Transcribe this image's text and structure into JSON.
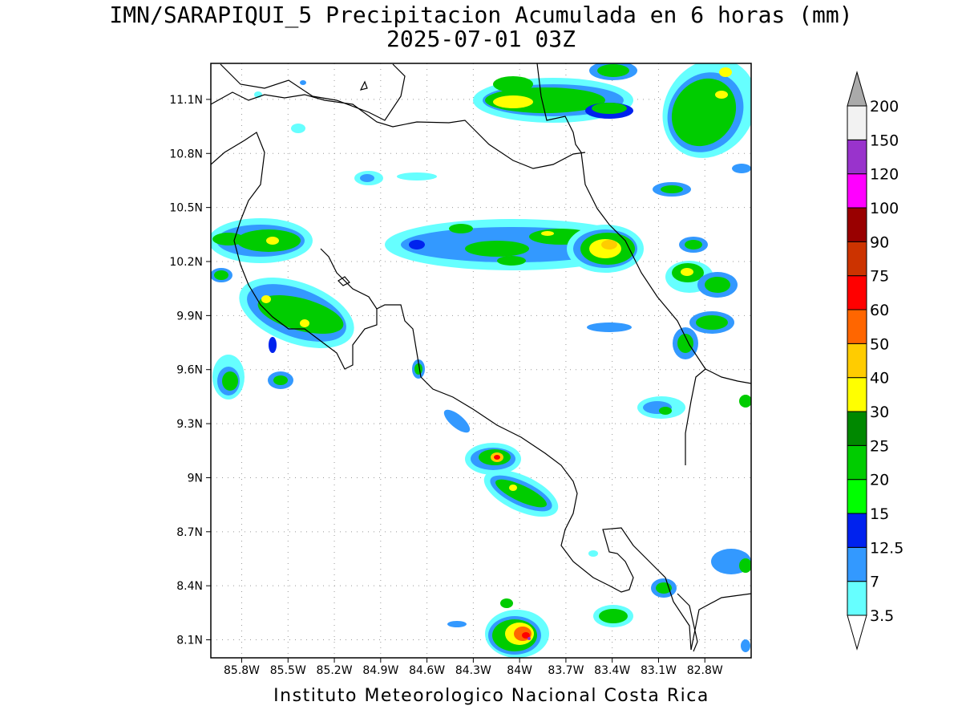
{
  "title": {
    "line1": "IMN/SARAPIQUI_5 Precipitacion Acumulada en 6 horas (mm)",
    "line2": "2025-07-01 03Z"
  },
  "credit": "Instituto Meteorologico Nacional Costa Rica",
  "map": {
    "lon_range": [
      -86.0,
      -82.5
    ],
    "lat_range": [
      8.0,
      11.3
    ],
    "lon_ticks": [
      "85.8W",
      "85.5W",
      "85.2W",
      "84.9W",
      "84.6W",
      "84.3W",
      "84W",
      "83.7W",
      "83.4W",
      "83.1W",
      "82.8W"
    ],
    "lat_ticks": [
      "11.1N",
      "10.8N",
      "10.5N",
      "10.2N",
      "9.9N",
      "9.6N",
      "9.3N",
      "9N",
      "8.7N",
      "8.4N",
      "8.1N"
    ],
    "grid": "dotted"
  },
  "colorbar": {
    "unit": "mm",
    "levels": [
      "3.5",
      "7",
      "12.5",
      "15",
      "20",
      "25",
      "30",
      "40",
      "50",
      "60",
      "75",
      "90",
      "100",
      "120",
      "150",
      "200"
    ],
    "colors": [
      "#66ffff",
      "#3399ff",
      "#0022ee",
      "#00ff00",
      "#00cc00",
      "#008800",
      "#ffff00",
      "#ffcc00",
      "#ff6600",
      "#ff0000",
      "#cc3300",
      "#990000",
      "#ff00ff",
      "#9933cc",
      "#f2f2f2",
      "#aaaaaa"
    ]
  }
}
